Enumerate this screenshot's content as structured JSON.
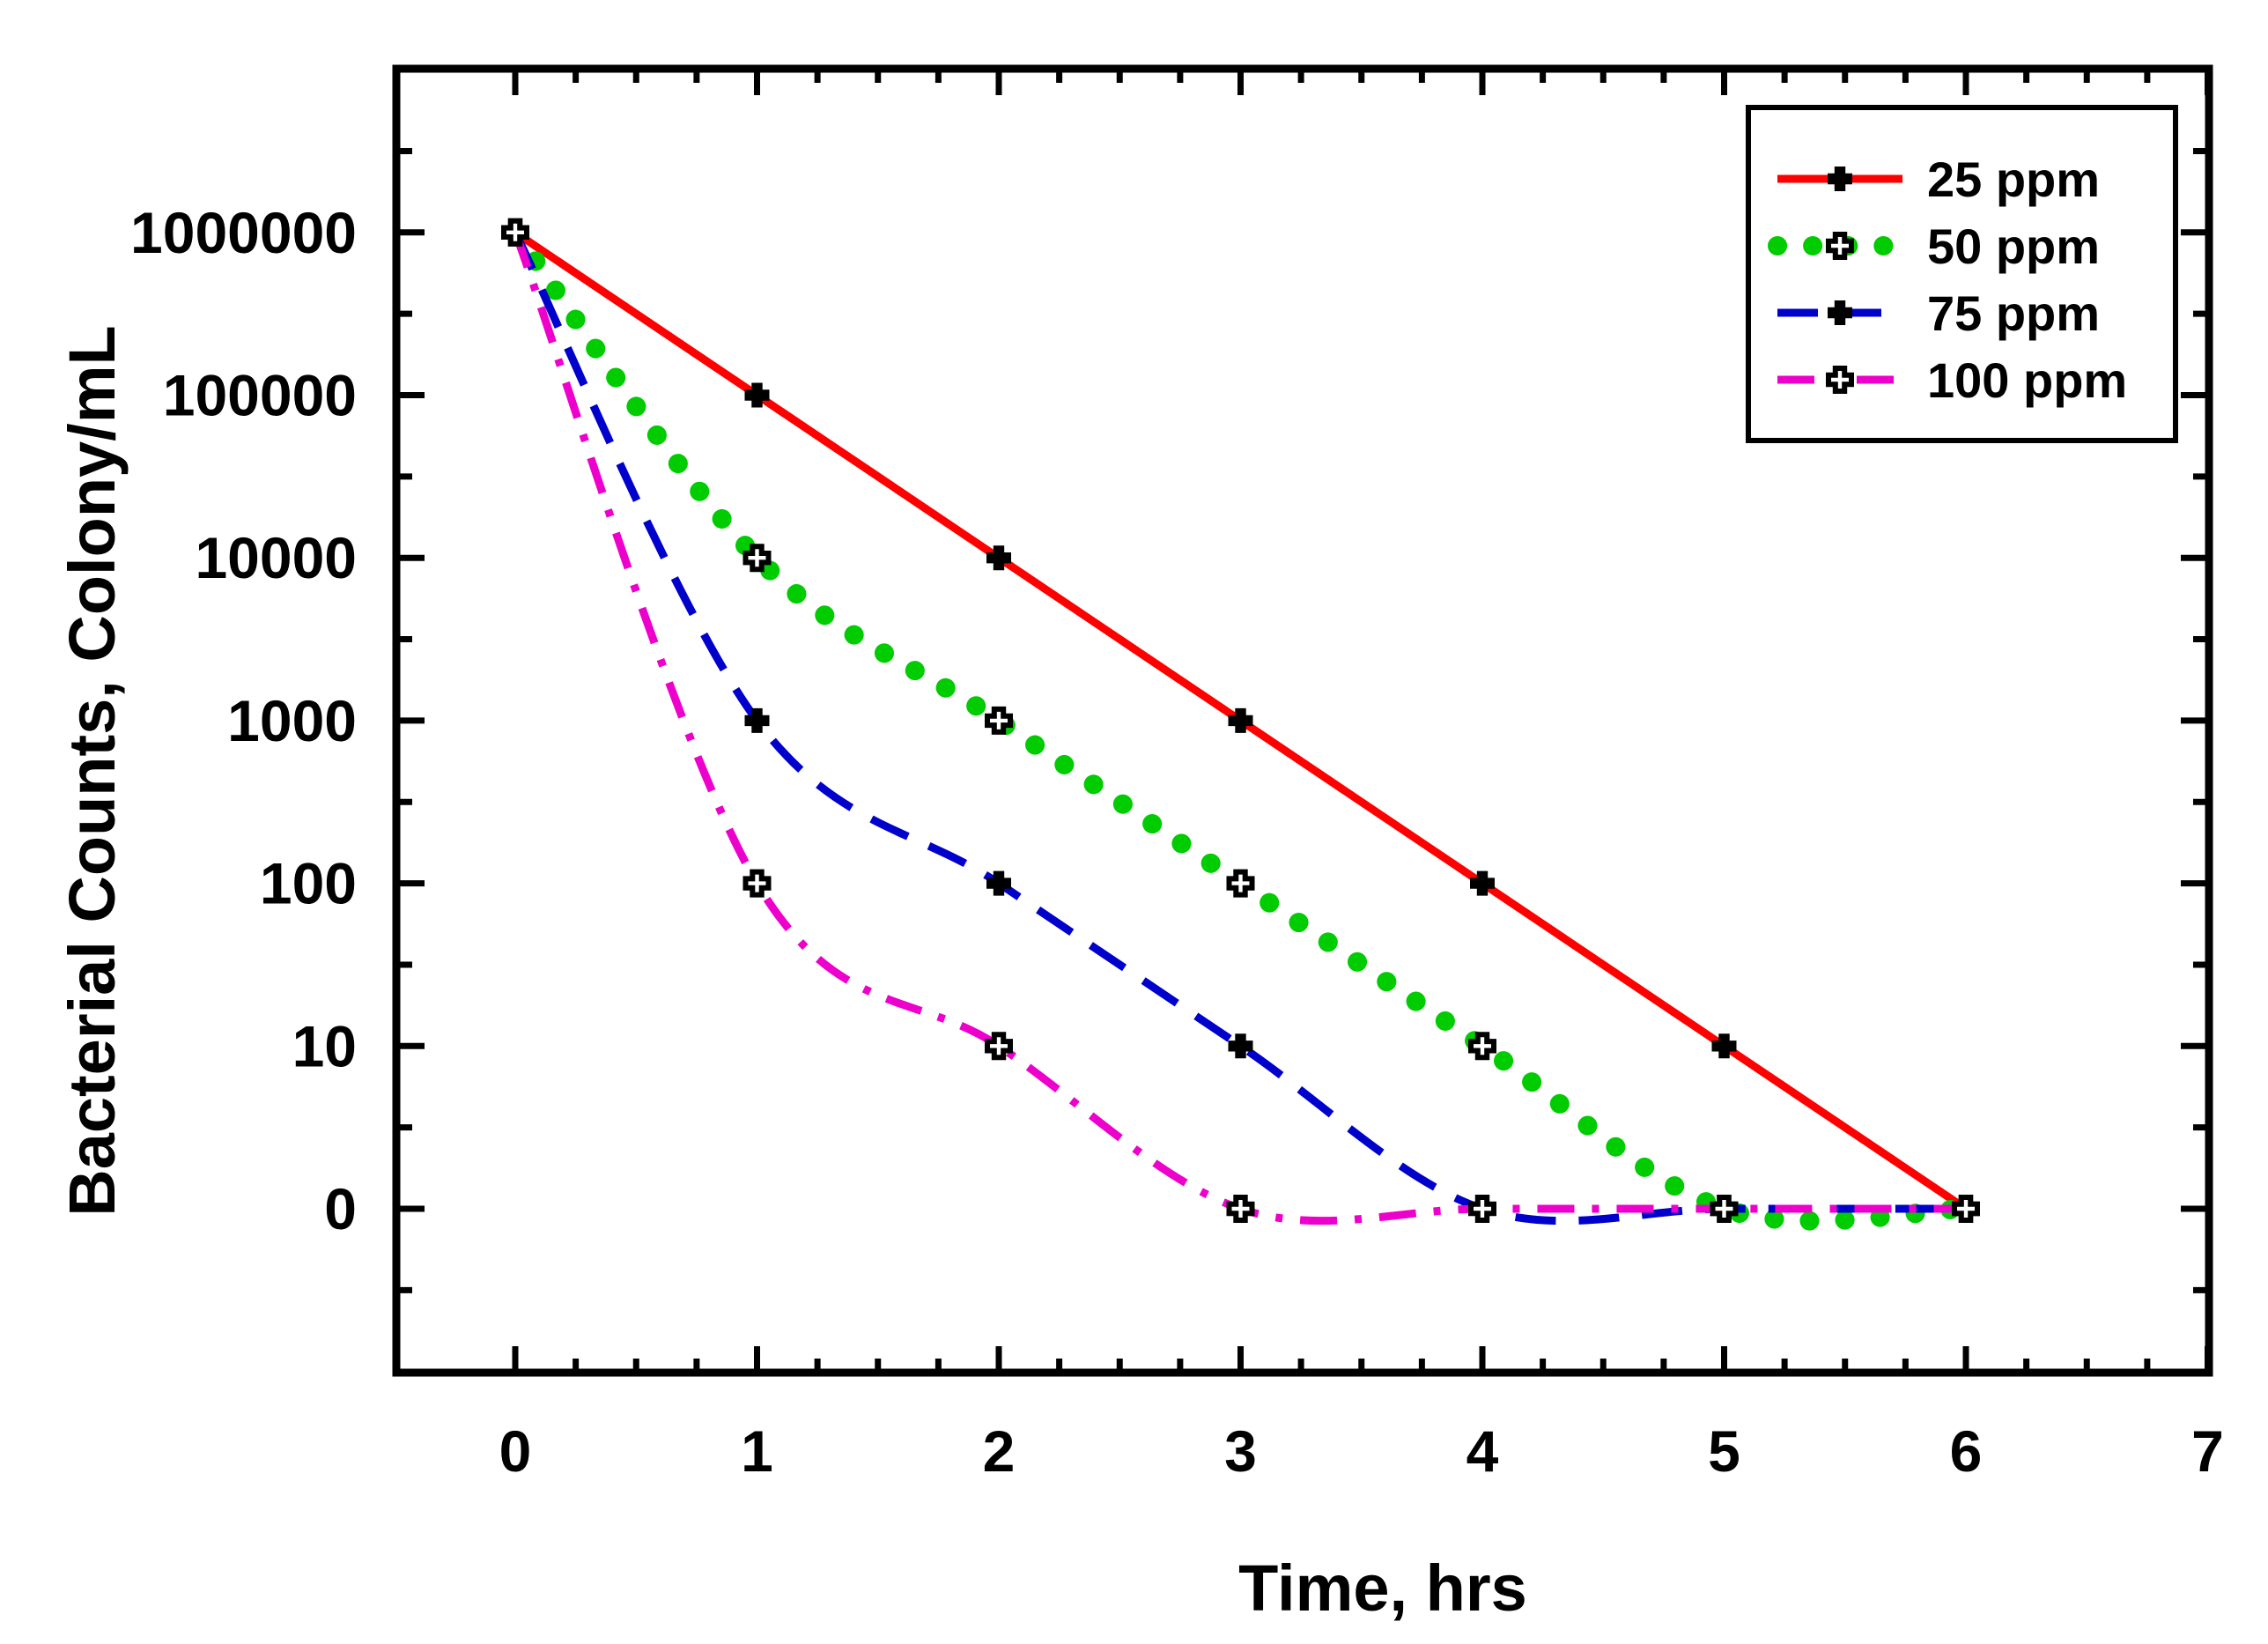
{
  "chart_data": {
    "type": "line",
    "title": "",
    "xlabel": "Time, hrs",
    "ylabel": "Bacterial Counts, Colony/mL",
    "x_ticks": [
      "0",
      "1",
      "2",
      "3",
      "4",
      "5",
      "6",
      "7"
    ],
    "y_ticks": [
      "0",
      "10",
      "100",
      "1000",
      "10000",
      "100000",
      "1000000"
    ],
    "y_scale": "log10 (0 plotted at 1)",
    "xlim": [
      -0.5,
      7
    ],
    "ylim_decades": [
      -1,
      7
    ],
    "x": [
      0,
      1,
      2,
      3,
      4,
      5,
      6
    ],
    "series": [
      {
        "name": "25 ppm",
        "color": "#ff0000",
        "line_style": "solid",
        "marker": "filled-cross",
        "values": [
          1000000,
          100000,
          10000,
          1000,
          100,
          10,
          0
        ]
      },
      {
        "name": "50 ppm",
        "color": "#00cc00",
        "line_style": "dotted",
        "marker": "open-cross",
        "values": [
          1000000,
          10000,
          1000,
          100,
          10,
          0,
          0
        ]
      },
      {
        "name": "75 ppm",
        "color": "#0000cc",
        "line_style": "dashed",
        "marker": "filled-cross",
        "values": [
          1000000,
          1000,
          100,
          10,
          0,
          0,
          0
        ]
      },
      {
        "name": "100 ppm",
        "color": "#ee00cc",
        "line_style": "dash-dot",
        "marker": "open-cross",
        "values": [
          1000000,
          100,
          10,
          0,
          0,
          0,
          0
        ]
      }
    ],
    "legend_position": "top-right",
    "grid": false
  }
}
